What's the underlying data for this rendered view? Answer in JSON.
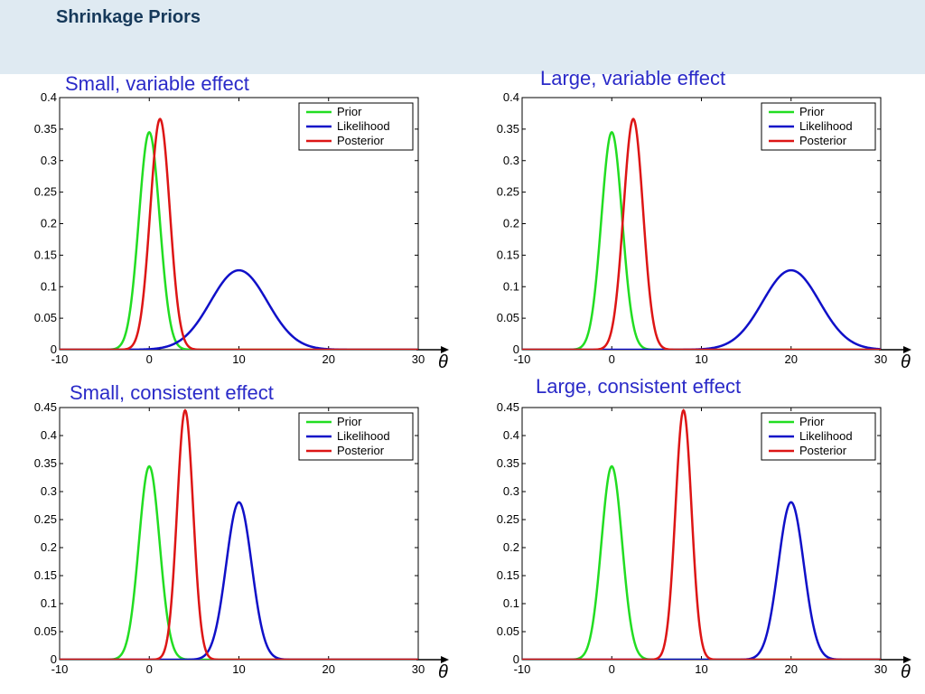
{
  "slide": {
    "title": "Shrinkage Priors",
    "header_band_color": "#dfeaf2"
  },
  "chart_data": [
    {
      "type": "line",
      "title": "Small, variable effect",
      "xlabel": "θ",
      "xlim": [
        -10,
        30
      ],
      "ylim": [
        0,
        0.4
      ],
      "xticks": [
        "-10",
        "0",
        "10",
        "20",
        "30"
      ],
      "yticks": [
        "0",
        "0.05",
        "0.1",
        "0.15",
        "0.2",
        "0.25",
        "0.3",
        "0.35",
        "0.4"
      ],
      "legend_position": "top-right",
      "grid": false,
      "series": [
        {
          "name": "Prior",
          "color": "#22dd22",
          "mean": 0,
          "peak": 0.345
        },
        {
          "name": "Likelihood",
          "color": "#1010c8",
          "mean": 10,
          "peak": 0.126
        },
        {
          "name": "Posterior",
          "color": "#dd1515",
          "mean": 1.2,
          "peak": 0.366
        }
      ]
    },
    {
      "type": "line",
      "title": "Large, variable effect",
      "xlabel": "θ",
      "xlim": [
        -10,
        30
      ],
      "ylim": [
        0,
        0.4
      ],
      "xticks": [
        "-10",
        "0",
        "10",
        "20",
        "30"
      ],
      "yticks": [
        "0",
        "0.05",
        "0.1",
        "0.15",
        "0.2",
        "0.25",
        "0.3",
        "0.35",
        "0.4"
      ],
      "legend_position": "top-right",
      "grid": false,
      "series": [
        {
          "name": "Prior",
          "color": "#22dd22",
          "mean": 0,
          "peak": 0.345
        },
        {
          "name": "Likelihood",
          "color": "#1010c8",
          "mean": 20,
          "peak": 0.126
        },
        {
          "name": "Posterior",
          "color": "#dd1515",
          "mean": 2.4,
          "peak": 0.366
        }
      ]
    },
    {
      "type": "line",
      "title": "Small, consistent effect",
      "xlabel": "θ",
      "xlim": [
        -10,
        30
      ],
      "ylim": [
        0,
        0.45
      ],
      "xticks": [
        "-10",
        "0",
        "10",
        "20",
        "30"
      ],
      "yticks": [
        "0",
        "0.05",
        "0.1",
        "0.15",
        "0.2",
        "0.25",
        "0.3",
        "0.35",
        "0.4",
        "0.45"
      ],
      "legend_position": "top-right",
      "grid": false,
      "series": [
        {
          "name": "Prior",
          "color": "#22dd22",
          "mean": 0,
          "peak": 0.345
        },
        {
          "name": "Likelihood",
          "color": "#1010c8",
          "mean": 10,
          "peak": 0.281
        },
        {
          "name": "Posterior",
          "color": "#dd1515",
          "mean": 4,
          "peak": 0.445
        }
      ]
    },
    {
      "type": "line",
      "title": "Large, consistent effect",
      "xlabel": "θ",
      "xlim": [
        -10,
        30
      ],
      "ylim": [
        0,
        0.45
      ],
      "xticks": [
        "-10",
        "0",
        "10",
        "20",
        "30"
      ],
      "yticks": [
        "0",
        "0.05",
        "0.1",
        "0.15",
        "0.2",
        "0.25",
        "0.3",
        "0.35",
        "0.4",
        "0.45"
      ],
      "legend_position": "top-right",
      "grid": false,
      "series": [
        {
          "name": "Prior",
          "color": "#22dd22",
          "mean": 0,
          "peak": 0.345
        },
        {
          "name": "Likelihood",
          "color": "#1010c8",
          "mean": 20,
          "peak": 0.281
        },
        {
          "name": "Posterior",
          "color": "#dd1515",
          "mean": 8,
          "peak": 0.445
        }
      ]
    }
  ]
}
